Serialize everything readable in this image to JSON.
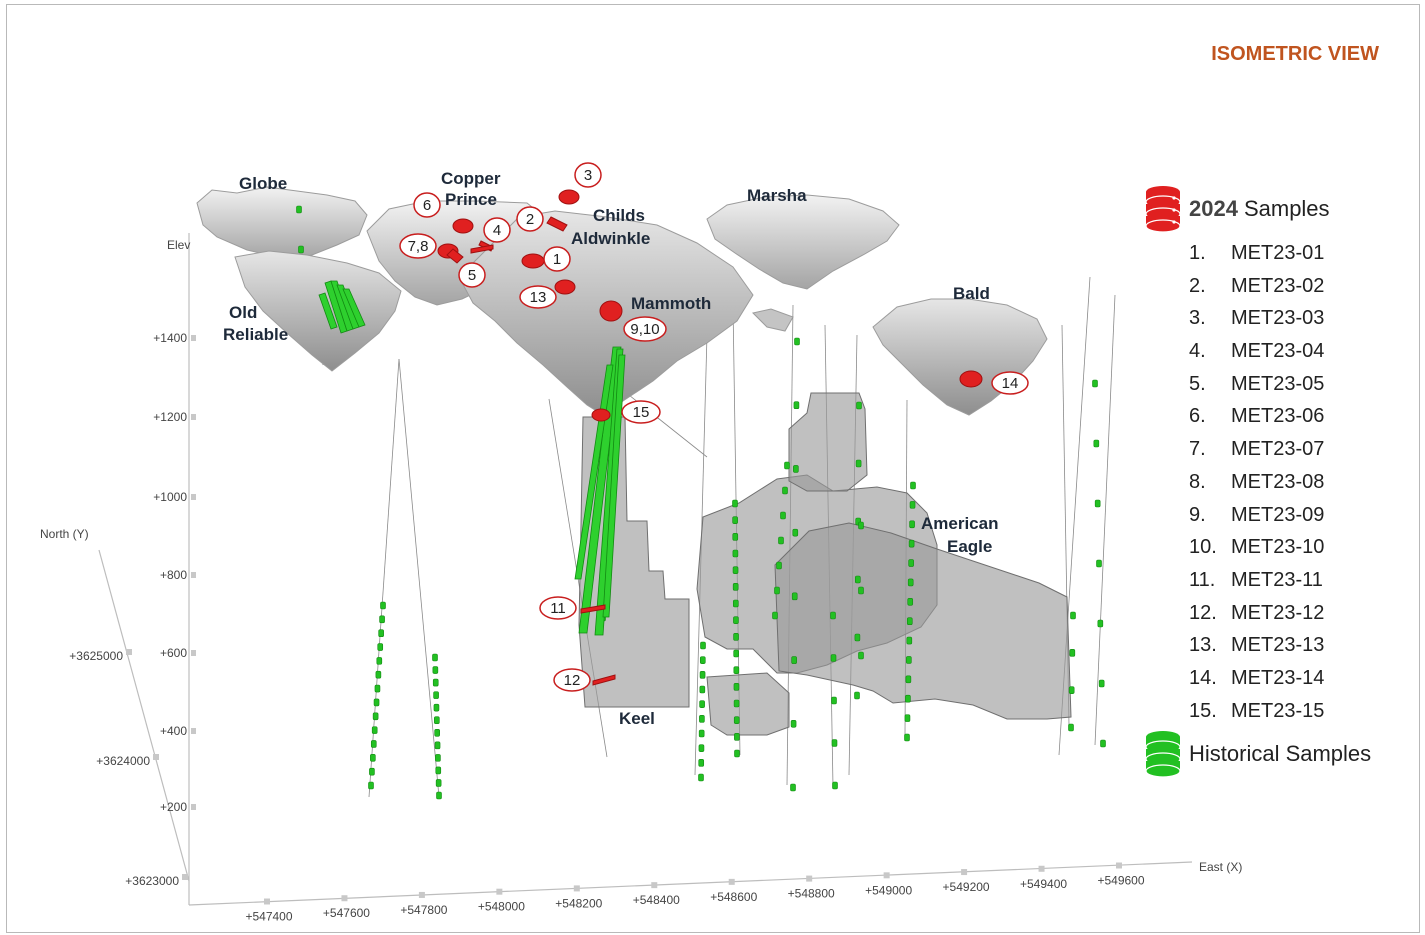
{
  "view_title": "ISOMETRIC VIEW",
  "axes": {
    "vertical_label": "Elev",
    "north_label": "North (Y)",
    "east_label": "East (X)",
    "elev_ticks": [
      "+1400",
      "+1200",
      "+1000",
      "+800",
      "+600",
      "+400",
      "+200"
    ],
    "north_ticks": [
      "+3625000",
      "+3624000",
      "+3623000"
    ],
    "east_ticks": [
      "+547400",
      "+547600",
      "+547800",
      "+548000",
      "+548200",
      "+548400",
      "+548600",
      "+548800",
      "+549000",
      "+549200",
      "+549400",
      "+549600"
    ]
  },
  "deposits": {
    "globe": "Globe",
    "copper_prince_1": "Copper",
    "copper_prince_2": "Prince",
    "childs_aldwinkle_1": "Childs",
    "childs_aldwinkle_2": "Aldwinkle",
    "marsha": "Marsha",
    "old_reliable_1": "Old",
    "old_reliable_2": "Reliable",
    "mammoth": "Mammoth",
    "bald": "Bald",
    "american_eagle_1": "American",
    "american_eagle_2": "Eagle",
    "keel": "Keel"
  },
  "callouts": {
    "c1": "1",
    "c2": "2",
    "c3": "3",
    "c4": "4",
    "c5": "5",
    "c6": "6",
    "c78": "7,8",
    "c910": "9,10",
    "c11": "11",
    "c12": "12",
    "c13": "13",
    "c14": "14",
    "c15": "15"
  },
  "legend": {
    "samples_2024_year": "2024",
    "samples_2024_label": "Samples",
    "items": [
      {
        "num": "1.",
        "label": "MET23-01"
      },
      {
        "num": "2.",
        "label": "MET23-02"
      },
      {
        "num": "3.",
        "label": "MET23-03"
      },
      {
        "num": "4.",
        "label": "MET23-04"
      },
      {
        "num": "5.",
        "label": "MET23-05"
      },
      {
        "num": "6.",
        "label": "MET23-06"
      },
      {
        "num": "7.",
        "label": "MET23-07"
      },
      {
        "num": "8.",
        "label": "MET23-08"
      },
      {
        "num": "9.",
        "label": "MET23-09"
      },
      {
        "num": "10.",
        "label": "MET23-10"
      },
      {
        "num": "11.",
        "label": "MET23-11"
      },
      {
        "num": "12.",
        "label": "MET23-12"
      },
      {
        "num": "13.",
        "label": "MET23-13"
      },
      {
        "num": "14.",
        "label": "MET23-14"
      },
      {
        "num": "15.",
        "label": "MET23-15"
      }
    ],
    "historical_label": "Historical Samples"
  },
  "colors": {
    "title": "#c0541f",
    "sample_2024": "#e02020",
    "historical": "#22c022",
    "pit_surface": "#c8c8c8",
    "orebody": "#9a9a9a"
  }
}
